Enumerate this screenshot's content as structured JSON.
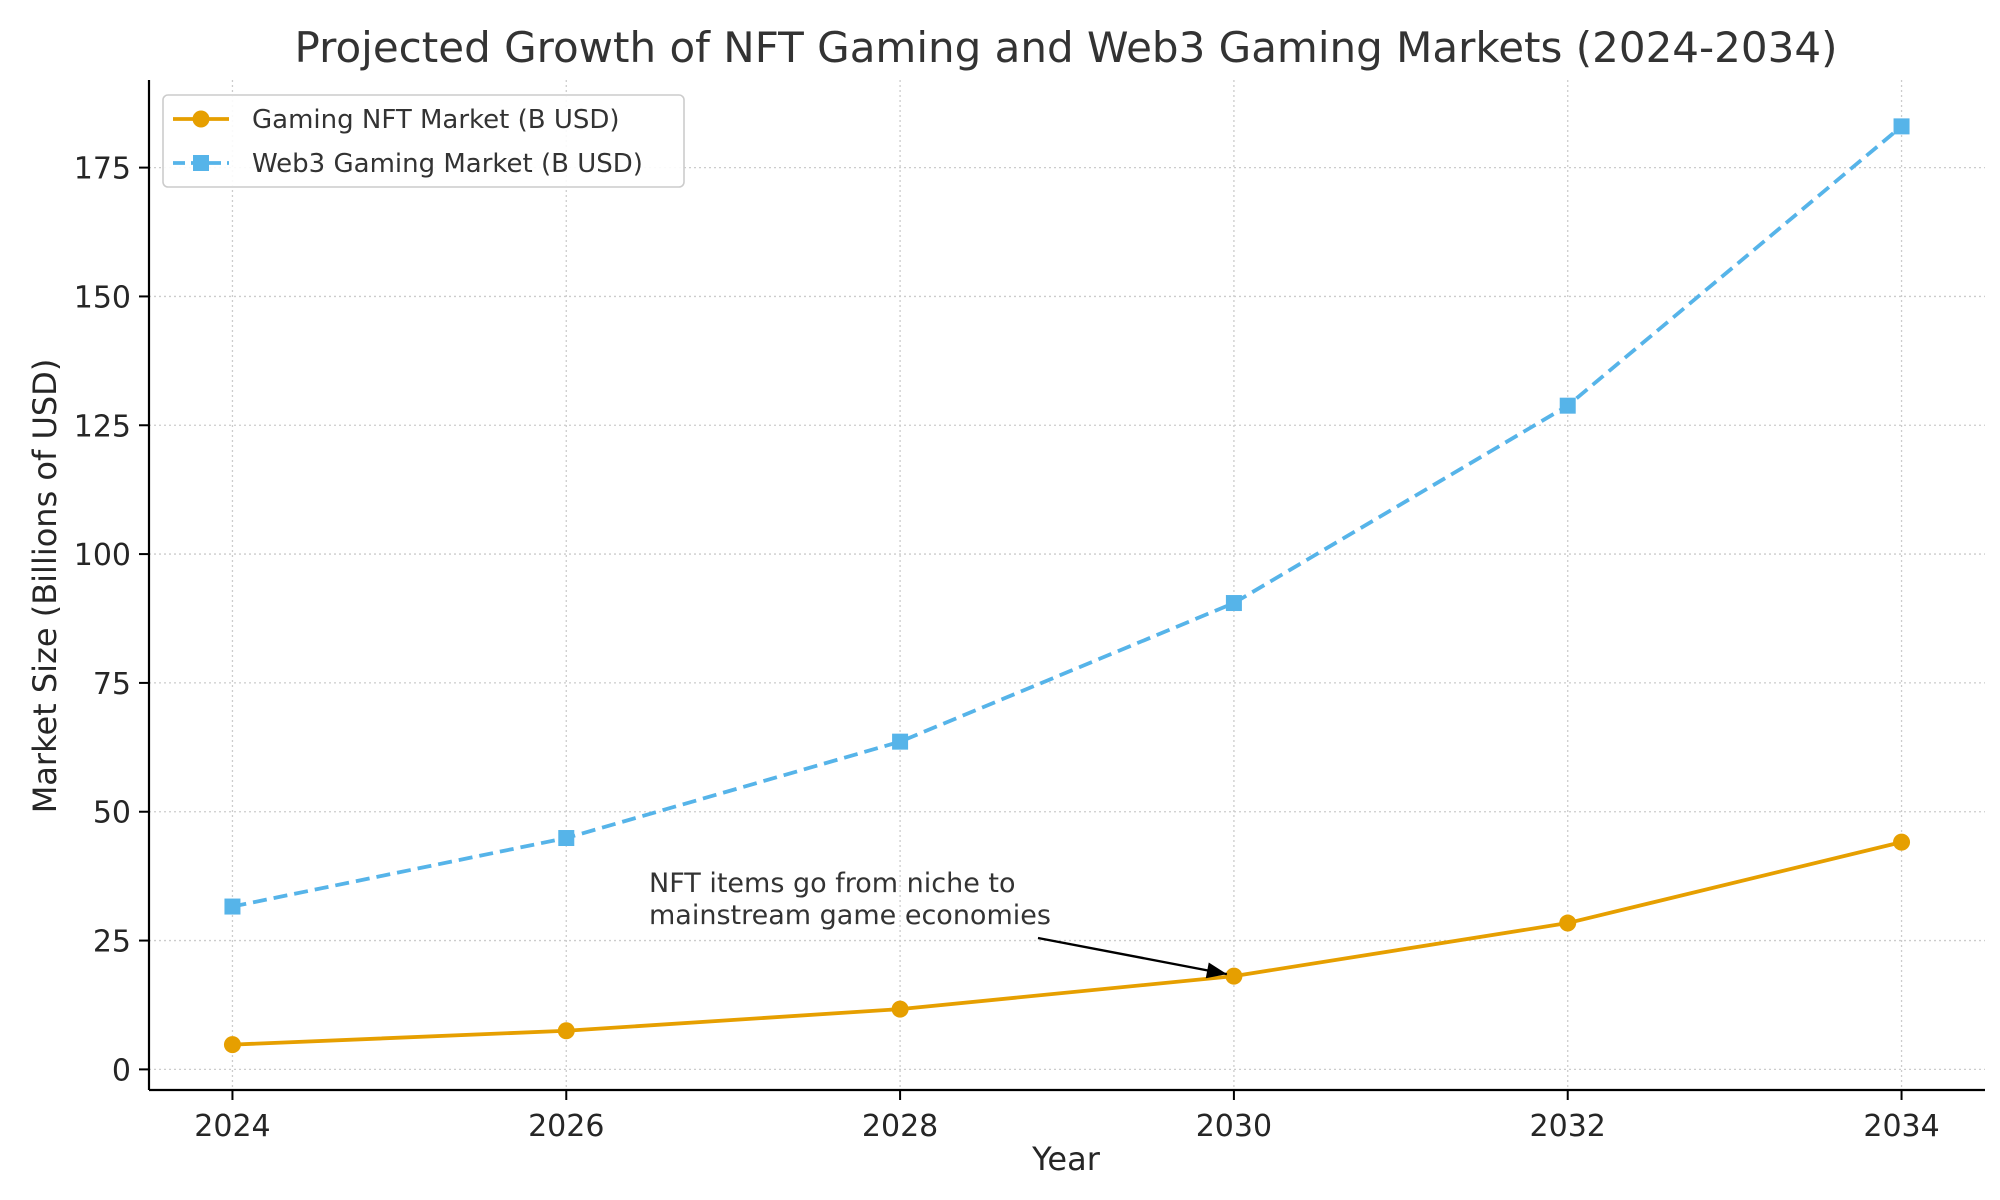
{
  "chart_data": {
    "type": "line",
    "title": "Projected Growth of NFT Gaming and Web3 Gaming Markets (2024-2034)",
    "xlabel": "Year",
    "ylabel": "Market Size (Billions of USD)",
    "x": [
      2024,
      2026,
      2028,
      2030,
      2032,
      2034
    ],
    "x_ticks": [
      2024,
      2026,
      2028,
      2030,
      2032,
      2034
    ],
    "y_ticks": [
      0,
      25,
      50,
      75,
      100,
      125,
      150,
      175
    ],
    "xlim": [
      2023.5,
      2034.5
    ],
    "ylim": [
      -4,
      192
    ],
    "grid": true,
    "legend_position": "top-left",
    "series": [
      {
        "name": "Gaming NFT Market (B USD)",
        "values": [
          4.8,
          7.5,
          11.7,
          18.1,
          28.4,
          44.1
        ],
        "color": "#E69F00",
        "line_style": "solid",
        "marker": "circle"
      },
      {
        "name": "Web3 Gaming Market (B USD)",
        "values": [
          31.6,
          44.9,
          63.6,
          90.5,
          128.8,
          183.0
        ],
        "color": "#56B4E9",
        "line_style": "dashed",
        "marker": "square"
      }
    ],
    "annotations": [
      {
        "text_lines": [
          "NFT items go from niche to",
          "mainstream game economies"
        ],
        "points_to": {
          "series": "Gaming NFT Market (B USD)",
          "x": 2030,
          "y": 18.1
        }
      }
    ]
  }
}
